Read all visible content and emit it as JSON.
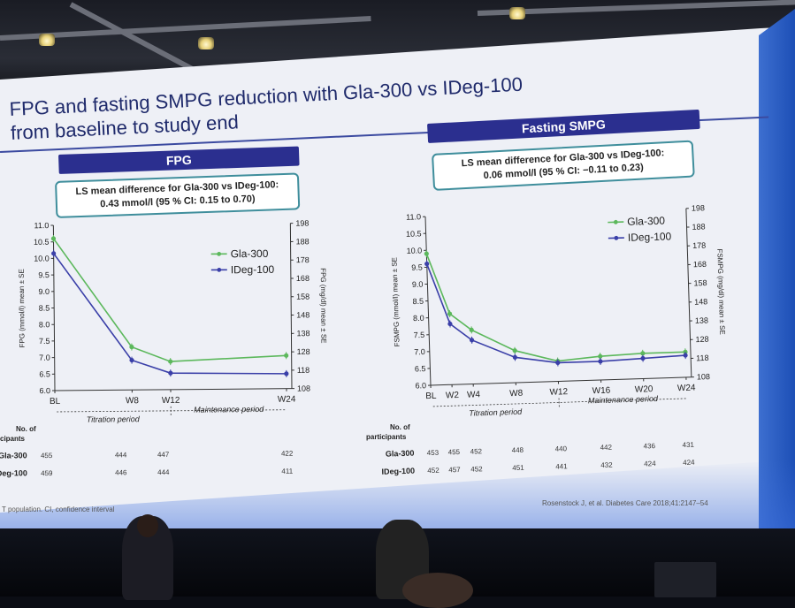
{
  "slide": {
    "title_line1": "FPG and fasting SMPG reduction with Gla-300 vs IDeg-100",
    "title_line2": "from baseline to study end",
    "footnote": "T population. CI, confidence interval",
    "reference": "Rosenstock J, et al. Diabetes Care 2018;41:2147–54"
  },
  "panels": {
    "left": {
      "header": "FPG",
      "ls_line1": "LS mean difference for Gla-300 vs IDeg-100:",
      "ls_line2": "0.43 mmol/l (95 % CI: 0.15 to 0.70)",
      "period1": "Titration period",
      "period2": "Maintenance period",
      "count_header": "No. of\ncipants",
      "row_labels": [
        "Gla-300",
        "Deg-100"
      ],
      "counts_gla": [
        "455",
        "444",
        "447",
        "422"
      ],
      "counts_ideg": [
        "459",
        "446",
        "444",
        "411"
      ]
    },
    "right": {
      "header": "Fasting SMPG",
      "ls_line1": "LS mean difference for Gla-300 vs IDeg-100:",
      "ls_line2": "0.06 mmol/l (95 % CI: −0.11 to 0.23)",
      "period1": "Titration period",
      "period2": "Maintenance period",
      "count_header_1": "No. of",
      "count_header_2": "participants",
      "row_labels": [
        "Gla-300",
        "IDeg-100"
      ],
      "counts_gla": [
        "453",
        "455",
        "452",
        "448",
        "440",
        "442",
        "436",
        "431"
      ],
      "counts_ideg": [
        "452",
        "457",
        "452",
        "451",
        "441",
        "432",
        "424",
        "424"
      ]
    }
  },
  "colors": {
    "gla": "#5cb85c",
    "ideg": "#3a3fa8",
    "header": "#2b2f8f",
    "box_border": "#3f8e9c"
  },
  "chart_data": [
    {
      "type": "line",
      "title": "FPG",
      "x": [
        "BL",
        "W8",
        "W12",
        "W24"
      ],
      "x_weeks": [
        0,
        8,
        12,
        24
      ],
      "ylabel": "FPG (mmol/l) mean ± SE",
      "y2label": "FPG (mg/dl) mean ± SE",
      "ylim": [
        6.0,
        11.0
      ],
      "yticks": [
        "6.0",
        "6.5",
        "7.0",
        "7.5",
        "8.0",
        "8.5",
        "9.0",
        "9.5",
        "10.0",
        "10.5",
        "11.0"
      ],
      "y2ticks": [
        "108",
        "118",
        "128",
        "138",
        "148",
        "158",
        "168",
        "178",
        "188",
        "198"
      ],
      "legend_position": "top-right",
      "series": [
        {
          "name": "Gla-300",
          "values": [
            10.6,
            7.3,
            6.85,
            7.0
          ]
        },
        {
          "name": "IDeg-100",
          "values": [
            10.15,
            6.9,
            6.5,
            6.45
          ]
        }
      ]
    },
    {
      "type": "line",
      "title": "Fasting SMPG",
      "x": [
        "BL",
        "W2",
        "W4",
        "W8",
        "W12",
        "W16",
        "W20",
        "W24"
      ],
      "x_weeks": [
        0,
        2,
        4,
        8,
        12,
        16,
        20,
        24
      ],
      "ylabel": "FSMPG (mmol/l) mean ± SE",
      "y2label": "FSMPG (mg/dl) mean ± SE",
      "ylim": [
        6.0,
        11.0
      ],
      "yticks": [
        "6.0",
        "6.5",
        "7.0",
        "7.5",
        "8.0",
        "8.5",
        "9.0",
        "9.5",
        "10.0",
        "10.5",
        "11.0"
      ],
      "y2ticks": [
        "108",
        "118",
        "128",
        "138",
        "148",
        "158",
        "168",
        "178",
        "188",
        "198"
      ],
      "legend_position": "top-right",
      "series": [
        {
          "name": "Gla-300",
          "values": [
            9.9,
            8.1,
            7.6,
            6.95,
            6.6,
            6.7,
            6.75,
            6.75
          ]
        },
        {
          "name": "IDeg-100",
          "values": [
            9.6,
            7.8,
            7.3,
            6.75,
            6.55,
            6.55,
            6.6,
            6.65
          ]
        }
      ]
    }
  ]
}
